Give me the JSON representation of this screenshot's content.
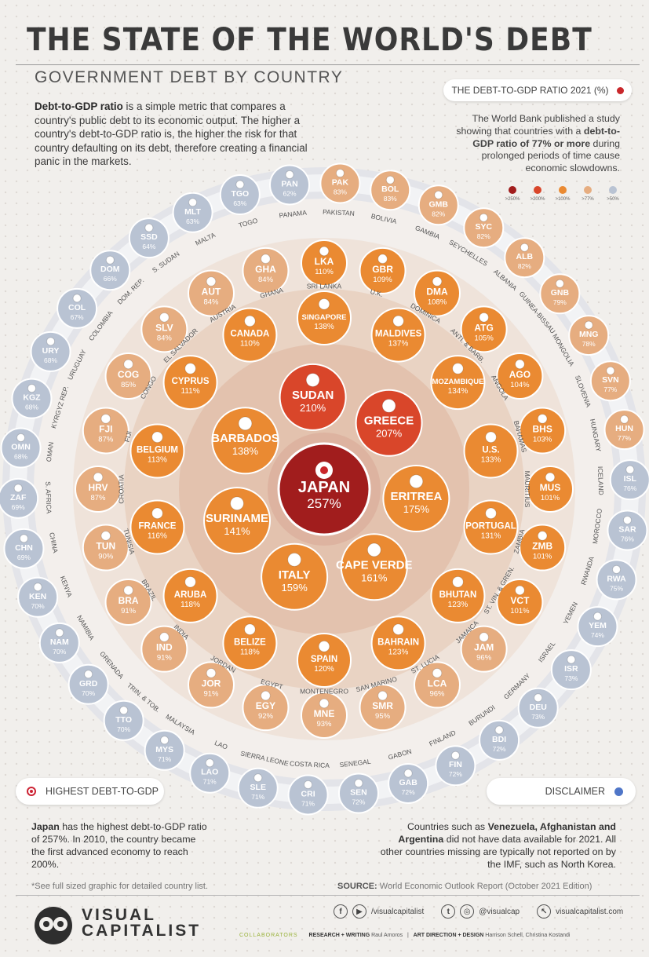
{
  "header": {
    "title": "THE STATE OF THE WORLD'S DEBT",
    "subtitle": "GOVERNMENT DEBT BY COUNTRY",
    "intro_bold": "Debt-to-GDP ratio",
    "intro_rest": " is a simple metric that compares a country's public debt to its economic output. The higher a country's debt-to-GDP ratio is, the higher the risk for that country defaulting on its debt, therefore creating a financial panic in the markets."
  },
  "legend": {
    "pill_label": "THE DEBT-TO-GDP RATIO 2021 (%)",
    "study_a": "The World Bank published a study showing that countries with a ",
    "study_bold": "debt-to-GDP ratio of 77% or more",
    "study_b": " during prolonged periods of time cause economic slowdowns.",
    "items": [
      {
        "label": ">250%",
        "color": "#a11d1d"
      },
      {
        "label": ">200%",
        "color": "#d9462a"
      },
      {
        "label": ">100%",
        "color": "#ea8a32"
      },
      {
        "label": ">77%",
        "color": "#e6ad80"
      },
      {
        "label": ">50%",
        "color": "#b9c3d3"
      }
    ]
  },
  "rings": [
    {
      "ring": 0,
      "countries": [
        {
          "code": "JAPAN",
          "value": "257%"
        }
      ]
    },
    {
      "ring": 1,
      "countries": [
        {
          "code": "SUDAN",
          "value": "210%"
        },
        {
          "code": "GREECE",
          "value": "207%"
        },
        {
          "code": "ERITREA",
          "value": "175%"
        },
        {
          "code": "CAPE VERDE",
          "value": "161%"
        },
        {
          "code": "ITALY",
          "value": "159%"
        },
        {
          "code": "SURINAME",
          "value": "141%"
        },
        {
          "code": "BARBADOS",
          "value": "138%"
        }
      ]
    },
    {
      "ring": 2,
      "countries": [
        {
          "code": "SINGAPORE",
          "value": "138%"
        },
        {
          "code": "MALDIVES",
          "value": "137%"
        },
        {
          "code": "MOZAMBIQUE",
          "value": "134%"
        },
        {
          "code": "U.S.",
          "value": "133%"
        },
        {
          "code": "PORTUGAL",
          "value": "131%"
        },
        {
          "code": "BHUTAN",
          "value": "123%"
        },
        {
          "code": "BAHRAIN",
          "value": "123%"
        },
        {
          "code": "SPAIN",
          "value": "120%"
        },
        {
          "code": "BELIZE",
          "value": "118%"
        },
        {
          "code": "ARUBA",
          "value": "118%"
        },
        {
          "code": "FRANCE",
          "value": "116%"
        },
        {
          "code": "BELGIUM",
          "value": "113%"
        },
        {
          "code": "CYPRUS",
          "value": "111%"
        },
        {
          "code": "CANADA",
          "value": "110%"
        }
      ]
    },
    {
      "ring": 3,
      "countries": [
        {
          "code": "LKA",
          "name": "SRI LANKA",
          "value": "110%"
        },
        {
          "code": "GBR",
          "name": "U.K.",
          "value": "109%"
        },
        {
          "code": "DMA",
          "name": "DOMINICA",
          "value": "108%"
        },
        {
          "code": "ATG",
          "name": "ANTI. & BARB.",
          "value": "105%"
        },
        {
          "code": "AGO",
          "name": "ANGOLA",
          "value": "104%"
        },
        {
          "code": "BHS",
          "name": "BAHAMAS",
          "value": "103%"
        },
        {
          "code": "MUS",
          "name": "MAURITIUS",
          "value": "101%"
        },
        {
          "code": "ZMB",
          "name": "ZAMBIA",
          "value": "101%"
        },
        {
          "code": "VCT",
          "name": "ST. VIN. & GREN.",
          "value": "101%"
        },
        {
          "code": "JAM",
          "name": "JAMAICA",
          "value": "96%"
        },
        {
          "code": "LCA",
          "name": "ST. LUCIA",
          "value": "96%"
        },
        {
          "code": "SMR",
          "name": "SAN MARINO",
          "value": "95%"
        },
        {
          "code": "MNE",
          "name": "MONTENEGRO",
          "value": "93%"
        },
        {
          "code": "EGY",
          "name": "EGYPT",
          "value": "92%"
        },
        {
          "code": "JOR",
          "name": "JORDAN",
          "value": "91%"
        },
        {
          "code": "IND",
          "name": "INDIA",
          "value": "91%"
        },
        {
          "code": "BRA",
          "name": "BRAZIL",
          "value": "91%"
        },
        {
          "code": "TUN",
          "name": "TUNISIA",
          "value": "90%"
        },
        {
          "code": "HRV",
          "name": "CROATIA",
          "value": "87%"
        },
        {
          "code": "FJI",
          "name": "FIJI",
          "value": "87%"
        },
        {
          "code": "COG",
          "name": "CONGO",
          "value": "85%"
        },
        {
          "code": "SLV",
          "name": "EL SALVADOR",
          "value": "84%"
        },
        {
          "code": "AUT",
          "name": "AUSTRIA",
          "value": "84%"
        },
        {
          "code": "GHA",
          "name": "GHANA",
          "value": "84%"
        }
      ]
    },
    {
      "ring": 4,
      "countries": [
        {
          "code": "PAK",
          "name": "PAKISTAN",
          "value": "83%"
        },
        {
          "code": "BOL",
          "name": "BOLIVIA",
          "value": "83%"
        },
        {
          "code": "GMB",
          "name": "GAMBIA",
          "value": "82%"
        },
        {
          "code": "SYC",
          "name": "SEYCHELLES",
          "value": "82%"
        },
        {
          "code": "ALB",
          "name": "ALBANIA",
          "value": "82%"
        },
        {
          "code": "GNB",
          "name": "GUINEA-BISSAU",
          "value": "79%"
        },
        {
          "code": "MNG",
          "name": "MONGOLIA",
          "value": "78%"
        },
        {
          "code": "SVN",
          "name": "SLOVENIA",
          "value": "77%"
        },
        {
          "code": "HUN",
          "name": "HUNGARY",
          "value": "77%"
        },
        {
          "code": "ISL",
          "name": "ICELAND",
          "value": "76%"
        },
        {
          "code": "SAR",
          "name": "MOROCCO",
          "value": "76%"
        },
        {
          "code": "RWA",
          "name": "RWANDA",
          "value": "75%"
        },
        {
          "code": "YEM",
          "name": "YEMEN",
          "value": "74%"
        },
        {
          "code": "ISR",
          "name": "ISRAEL",
          "value": "73%"
        },
        {
          "code": "DEU",
          "name": "GERMANY",
          "value": "73%"
        },
        {
          "code": "BDI",
          "name": "BURUNDI",
          "value": "72%"
        },
        {
          "code": "FIN",
          "name": "FINLAND",
          "value": "72%"
        },
        {
          "code": "GAB",
          "name": "GABON",
          "value": "72%"
        },
        {
          "code": "SEN",
          "name": "SENEGAL",
          "value": "72%"
        },
        {
          "code": "CRI",
          "name": "COSTA RICA",
          "value": "71%"
        },
        {
          "code": "SLE",
          "name": "SIERRA LEONE",
          "value": "71%"
        },
        {
          "code": "LAO",
          "name": "LAO",
          "value": "71%"
        },
        {
          "code": "MYS",
          "name": "MALAYSIA",
          "value": "71%"
        },
        {
          "code": "TTO",
          "name": "TRIN. & TOB.",
          "value": "70%"
        },
        {
          "code": "GRD",
          "name": "GRENADA",
          "value": "70%"
        },
        {
          "code": "NAM",
          "name": "NAMIBIA",
          "value": "70%"
        },
        {
          "code": "KEN",
          "name": "KENYA",
          "value": "70%"
        },
        {
          "code": "CHN",
          "name": "CHINA",
          "value": "69%"
        },
        {
          "code": "ZAF",
          "name": "S. AFRICA",
          "value": "69%"
        },
        {
          "code": "OMN",
          "name": "OMAN",
          "value": "68%"
        },
        {
          "code": "KGZ",
          "name": "KYRGYZ REP.",
          "value": "68%"
        },
        {
          "code": "URY",
          "name": "URUGUAY",
          "value": "68%"
        },
        {
          "code": "COL",
          "name": "COLOMBIA",
          "value": "67%"
        },
        {
          "code": "DOM",
          "name": "DOM. REP.",
          "value": "66%"
        },
        {
          "code": "SSD",
          "name": "S. SUDAN",
          "value": "64%"
        },
        {
          "code": "MLT",
          "name": "MALTA",
          "value": "63%"
        },
        {
          "code": "TGO",
          "name": "TOGO",
          "value": "63%"
        },
        {
          "code": "PAN",
          "name": "PANAMA",
          "value": "62%"
        }
      ]
    }
  ],
  "highest": {
    "pill_label": "HIGHEST DEBT-TO-GDP",
    "note_bold": "Japan",
    "note_rest": " has the highest debt-to-GDP ratio of 257%. In 2010, the country became the first advanced economy to reach 200%."
  },
  "disclaimer": {
    "pill_label": "DISCLAIMER",
    "note_a": "Countries such as ",
    "note_bold": "Venezuela, Afghanistan and Argentina",
    "note_b": " did not have data available for 2021. All other countries missing are typically not reported on by the IMF, such as North Korea."
  },
  "footer": {
    "see_full": "*See full sized graphic for detailed country list.",
    "source_label": "SOURCE:",
    "source_text": " World Economic Outlook Report (October 2021 Edition)",
    "logo_line1": "VISUAL",
    "logo_line2": "CAPITALIST",
    "social_fb": "/visualcapitalist",
    "social_tw": "@visualcap",
    "website": "visualcapitalist.com",
    "collaborators": "COLLABORATORS",
    "research_label": "RESEARCH + WRITING",
    "research_name": "Raul Amoros",
    "art_label": "ART DIRECTION + DESIGN",
    "art_name": "Harrison Schell, Christina Kostandi"
  }
}
